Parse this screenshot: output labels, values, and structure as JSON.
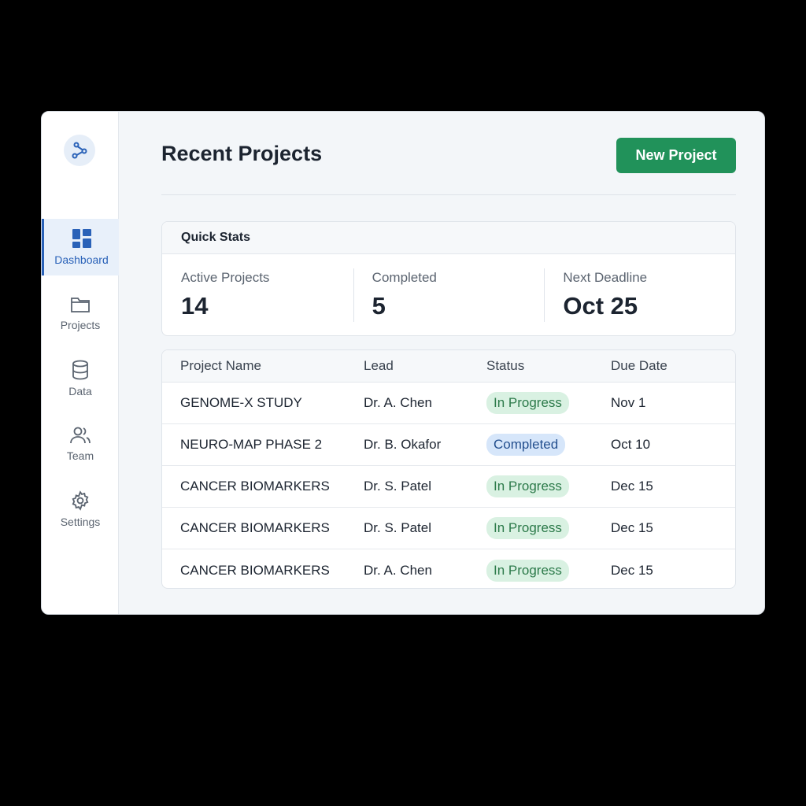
{
  "sidebar": {
    "logo_icon": "share-nodes-icon",
    "items": [
      {
        "label": "Dashboard",
        "icon": "dashboard-icon",
        "active": true
      },
      {
        "label": "Projects",
        "icon": "folder-icon"
      },
      {
        "label": "Data",
        "icon": "database-icon"
      },
      {
        "label": "Team",
        "icon": "users-icon"
      },
      {
        "label": "Settings",
        "icon": "gear-icon"
      }
    ]
  },
  "header": {
    "title": "Recent Projects",
    "new_project_label": "New Project"
  },
  "quick_stats": {
    "title": "Quick Stats",
    "stats": [
      {
        "label": "Active Projects",
        "value": "14"
      },
      {
        "label": "Completed",
        "value": "5"
      },
      {
        "label": "Next Deadline",
        "value": "Oct 25"
      }
    ]
  },
  "table": {
    "columns": [
      "Project Name",
      "Lead",
      "Status",
      "Due Date"
    ],
    "rows": [
      {
        "name": "GENOME-X STUDY",
        "lead": "Dr. A. Chen",
        "status": "In Progress",
        "due": "Nov 1"
      },
      {
        "name": "NEURO-MAP PHASE 2",
        "lead": "Dr. B. Okafor",
        "status": "Completed",
        "due": "Oct 10"
      },
      {
        "name": "CANCER BIOMARKERS",
        "lead": "Dr. S. Patel",
        "status": "In Progress",
        "due": "Dec 15"
      },
      {
        "name": "CANCER BIOMARKERS",
        "lead": "Dr. S. Patel",
        "status": "In Progress",
        "due": "Dec 15"
      },
      {
        "name": "CANCER BIOMARKERS",
        "lead": "Dr. A. Chen",
        "status": "In Progress",
        "due": "Dec 15"
      }
    ]
  },
  "colors": {
    "accent": "#2a62b8",
    "primary_button": "#21925a",
    "in_progress_bg": "#d9f1e2",
    "completed_bg": "#d6e6fa"
  }
}
